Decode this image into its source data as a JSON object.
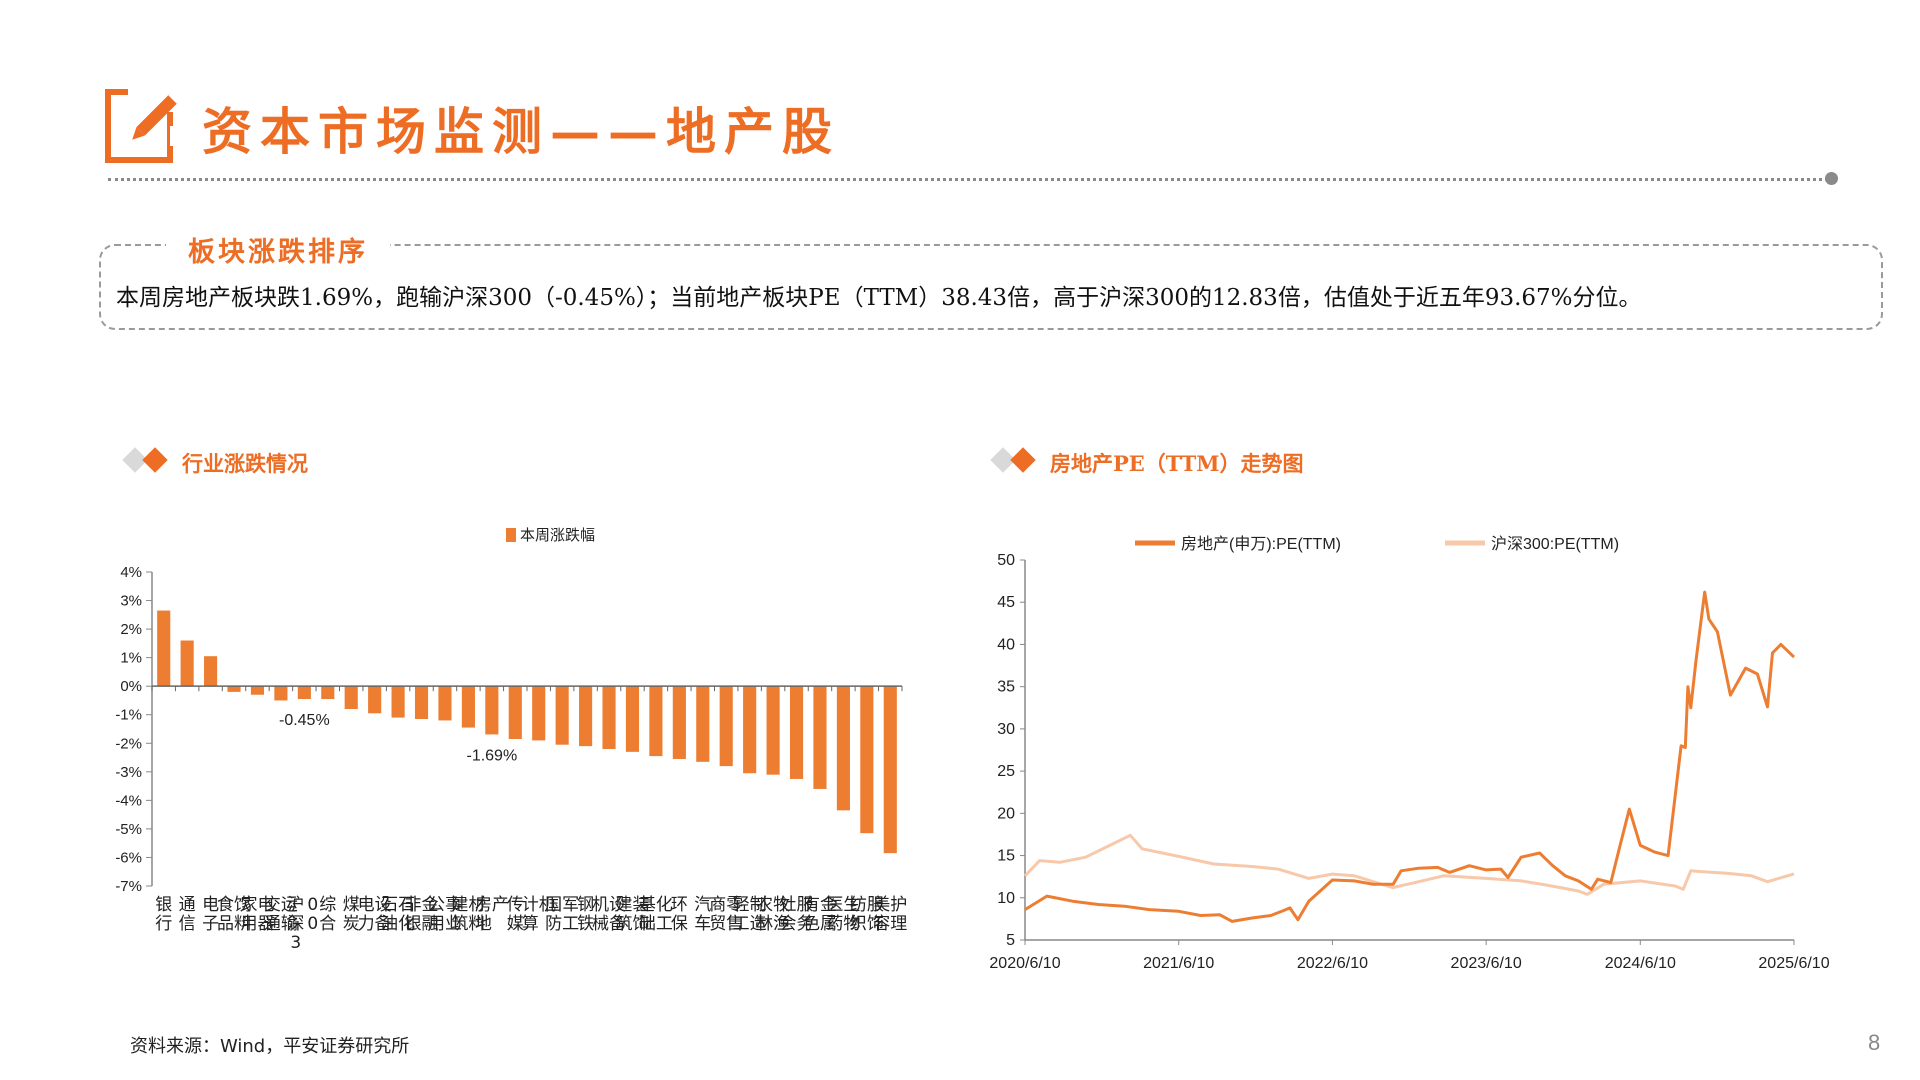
{
  "page": {
    "title": "资本市场监测——地产股",
    "page_number": "8",
    "source": "资料来源：Wind，平安证券研究所",
    "accent_color": "#ED6D25",
    "title_icon": "pencil-note-icon"
  },
  "summary": {
    "heading": "板块涨跌排序",
    "text": "本周房地产板块跌1.69%，跑输沪深300（-0.45%）；当前地产板块PE（TTM）38.43倍，高于沪深300的12.83倍，估值处于近五年93.67%分位。"
  },
  "sections": {
    "left_title": "行业涨跌情况",
    "right_title": "房地产PE（TTM）走势图",
    "bullet_icon": "diamond-bullet-icon"
  },
  "chart_data": [
    {
      "type": "bar",
      "title": "",
      "legend": "本周涨跌幅",
      "legend_position": "top-center",
      "bar_color": "#ED7D31",
      "ylim": [
        -7,
        4
      ],
      "yticks": [
        "4%",
        "3%",
        "2%",
        "1%",
        "0%",
        "-1%",
        "-2%",
        "-3%",
        "-4%",
        "-5%",
        "-6%",
        "-7%"
      ],
      "categories": [
        "银行",
        "通信",
        "电子",
        "食品饮料",
        "家用电器",
        "交通运输",
        "沪深300",
        "综合",
        "煤炭",
        "电力设备",
        "石油石化",
        "非银金融",
        "公用事业",
        "建筑材料",
        "房地产",
        "传媒",
        "计算机",
        "国防军工",
        "钢铁",
        "机械设备",
        "建筑装饰",
        "基础化工",
        "环保",
        "汽车",
        "商贸零售",
        "轻工制造",
        "农林牧渔",
        "社会服务",
        "有色金属",
        "医药生物",
        "纺织服饰",
        "美容护理"
      ],
      "values": [
        2.65,
        1.6,
        1.05,
        -0.2,
        -0.3,
        -0.5,
        -0.45,
        -0.45,
        -0.8,
        -0.95,
        -1.1,
        -1.15,
        -1.2,
        -1.45,
        -1.69,
        -1.85,
        -1.9,
        -2.05,
        -2.1,
        -2.2,
        -2.3,
        -2.45,
        -2.55,
        -2.65,
        -2.8,
        -3.05,
        -3.1,
        -3.25,
        -3.6,
        -4.35,
        -5.15,
        -5.85
      ],
      "annotations": [
        {
          "category": "沪深300",
          "text": "-0.45%"
        },
        {
          "category": "房地产",
          "text": "-1.69%"
        }
      ],
      "grid": false
    },
    {
      "type": "line",
      "title": "",
      "legend_position": "top-center",
      "ylim": [
        5,
        50
      ],
      "yticks": [
        5,
        10,
        15,
        20,
        25,
        30,
        35,
        40,
        45,
        50
      ],
      "xticks": [
        "2020/6/10",
        "2021/6/10",
        "2022/6/10",
        "2023/6/10",
        "2024/6/10",
        "2025/6/10"
      ],
      "grid": false,
      "series": [
        {
          "name": "房地产(申万):PE(TTM)",
          "color": "#ED7D31",
          "x": [
            "2020/6/10",
            "2020/8/1",
            "2020/10/1",
            "2020/12/1",
            "2021/2/1",
            "2021/4/1",
            "2021/6/10",
            "2021/8/1",
            "2021/9/15",
            "2021/10/15",
            "2021/12/1",
            "2022/1/15",
            "2022/2/15",
            "2022/3/1",
            "2022/3/20",
            "2022/4/15",
            "2022/6/10",
            "2022/8/1",
            "2022/9/15",
            "2022/11/1",
            "2022/11/20",
            "2023/1/1",
            "2023/2/15",
            "2023/3/15",
            "2023/5/1",
            "2023/6/10",
            "2023/7/15",
            "2023/8/1",
            "2023/9/1",
            "2023/10/15",
            "2023/11/15",
            "2023/12/15",
            "2024/1/15",
            "2024/2/15",
            "2024/3/1",
            "2024/4/1",
            "2024/4/20",
            "2024/5/15",
            "2024/6/10",
            "2024/7/15",
            "2024/8/15",
            "2024/9/15",
            "2024/9/25",
            "2024/10/1",
            "2024/10/8",
            "2024/10/20",
            "2024/11/10",
            "2024/11/20",
            "2024/12/10",
            "2025/1/10",
            "2025/2/15",
            "2025/3/15",
            "2025/4/8",
            "2025/4/20",
            "2025/5/10",
            "2025/6/10"
          ],
          "values": [
            8.6,
            10.2,
            9.6,
            9.2,
            9.0,
            8.6,
            8.4,
            7.9,
            8.0,
            7.2,
            7.6,
            7.9,
            8.5,
            8.8,
            7.4,
            9.6,
            12.1,
            12.0,
            11.6,
            11.6,
            13.2,
            13.5,
            13.6,
            13.0,
            13.8,
            13.3,
            13.4,
            12.4,
            14.8,
            15.3,
            13.8,
            12.6,
            12.0,
            11.0,
            12.2,
            11.8,
            15.6,
            20.5,
            16.2,
            15.4,
            15.0,
            28.0,
            27.8,
            35.0,
            32.5,
            38.0,
            46.2,
            43.0,
            41.5,
            34.0,
            37.2,
            36.5,
            32.6,
            39.0,
            40.0,
            38.5
          ]
        },
        {
          "name": "沪深300:PE(TTM)",
          "color": "#F7C8A9",
          "x": [
            "2020/6/10",
            "2020/7/15",
            "2020/9/1",
            "2020/11/1",
            "2021/1/1",
            "2021/2/15",
            "2021/3/15",
            "2021/6/10",
            "2021/9/1",
            "2021/12/1",
            "2022/2/1",
            "2022/4/15",
            "2022/6/10",
            "2022/8/1",
            "2022/10/31",
            "2023/1/1",
            "2023/3/1",
            "2023/6/10",
            "2023/9/1",
            "2023/11/1",
            "2024/1/15",
            "2024/2/5",
            "2024/3/15",
            "2024/6/10",
            "2024/9/1",
            "2024/9/20",
            "2024/10/8",
            "2024/11/1",
            "2025/1/1",
            "2025/3/1",
            "2025/4/8",
            "2025/6/10"
          ],
          "values": [
            12.6,
            14.4,
            14.2,
            14.8,
            16.3,
            17.4,
            15.8,
            14.9,
            14.0,
            13.7,
            13.4,
            12.3,
            12.8,
            12.6,
            11.2,
            11.9,
            12.6,
            12.3,
            12.0,
            11.5,
            10.8,
            10.4,
            11.6,
            12.0,
            11.4,
            11.0,
            13.2,
            13.1,
            12.9,
            12.6,
            11.9,
            12.83
          ]
        }
      ]
    }
  ]
}
